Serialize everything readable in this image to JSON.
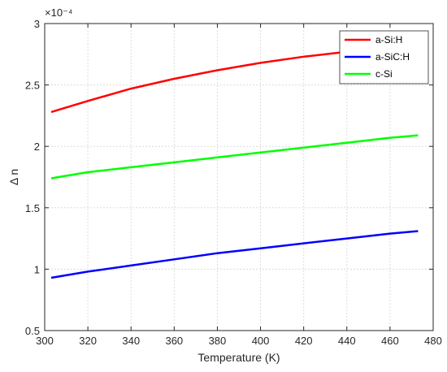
{
  "chart_data": {
    "type": "line",
    "title": "",
    "xlabel": "Temperature (K)",
    "ylabel": "Δ n",
    "exponent_label": "×10⁻⁴",
    "xlim": [
      300,
      480
    ],
    "ylim": [
      0.5,
      3
    ],
    "xticks": [
      "300",
      "320",
      "340",
      "360",
      "380",
      "400",
      "420",
      "440",
      "460",
      "480"
    ],
    "yticks": [
      "0.5",
      "1",
      "1.5",
      "2",
      "2.5",
      "3"
    ],
    "grid": true,
    "legend_position": "top-right",
    "x": [
      303,
      320,
      340,
      360,
      380,
      400,
      420,
      440,
      460,
      473
    ],
    "series": [
      {
        "name": "a-Si:H",
        "color": "#ff0000",
        "values": [
          2.28,
          2.37,
          2.47,
          2.55,
          2.62,
          2.68,
          2.73,
          2.77,
          2.81,
          2.83
        ]
      },
      {
        "name": "a-SiC:H",
        "color": "#0000ff",
        "values": [
          0.93,
          0.98,
          1.03,
          1.08,
          1.13,
          1.17,
          1.21,
          1.25,
          1.29,
          1.31
        ]
      },
      {
        "name": "c-Si",
        "color": "#00ff00",
        "values": [
          1.74,
          1.79,
          1.83,
          1.87,
          1.91,
          1.95,
          1.99,
          2.03,
          2.07,
          2.09
        ]
      }
    ]
  }
}
